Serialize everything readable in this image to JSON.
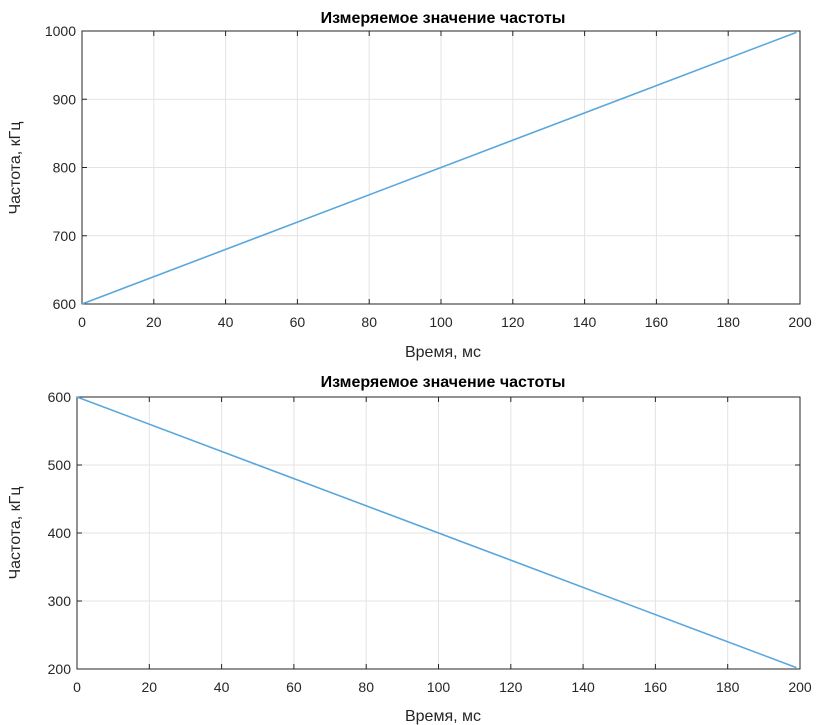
{
  "chart_data": [
    {
      "type": "line",
      "title": "Измеряемое значение частоты",
      "xlabel": "Время, мс",
      "ylabel": "Частота, кГц",
      "xlim": [
        0,
        200
      ],
      "ylim": [
        600,
        1000
      ],
      "xticks": [
        0,
        20,
        40,
        60,
        80,
        100,
        120,
        140,
        160,
        180,
        200
      ],
      "yticks": [
        600,
        700,
        800,
        900,
        1000
      ],
      "grid": true,
      "series": [
        {
          "color": "#5aa7dd",
          "x": [
            0,
            199
          ],
          "y": [
            600,
            998
          ]
        }
      ]
    },
    {
      "type": "line",
      "title": "Измеряемое значение частоты",
      "xlabel": "Время, мс",
      "ylabel": "Частота, кГц",
      "xlim": [
        0,
        200
      ],
      "ylim": [
        200,
        600
      ],
      "xticks": [
        0,
        20,
        40,
        60,
        80,
        100,
        120,
        140,
        160,
        180,
        200
      ],
      "yticks": [
        200,
        300,
        400,
        500,
        600
      ],
      "grid": true,
      "series": [
        {
          "color": "#5aa7dd",
          "x": [
            0,
            199
          ],
          "y": [
            600,
            202
          ]
        }
      ]
    }
  ]
}
